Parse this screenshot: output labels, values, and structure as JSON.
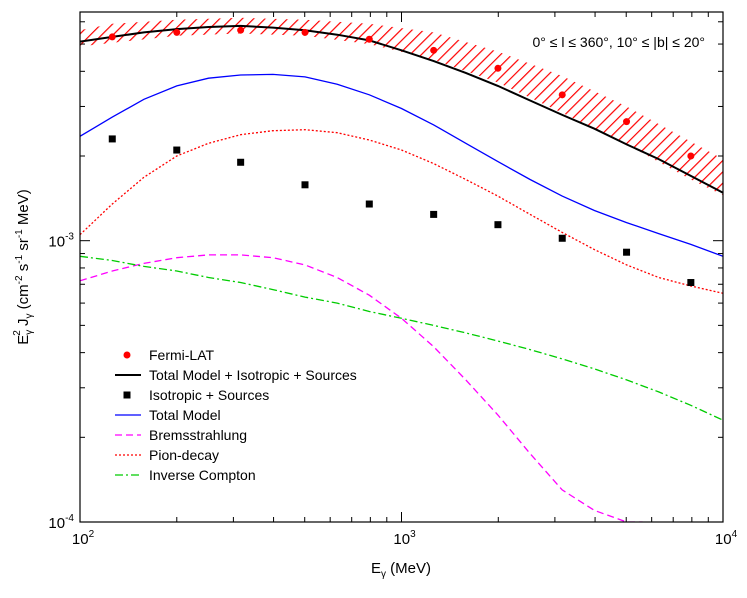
{
  "chart_data": {
    "type": "line",
    "title": "",
    "annotation": "0° ≤ l ≤ 360°, 10° ≤ |b| ≤ 20°",
    "xlabel": {
      "base": "E",
      "sub": "γ",
      "rest": " (MeV)"
    },
    "ylabel": {
      "base": "E",
      "sub": "γ",
      "sup": "2",
      "mid": " J",
      "sub2": "γ",
      "pre_units": " (cm",
      "exp1": "-2",
      "s_txt": " s",
      "exp2": "-1",
      "sr_txt": " sr",
      "exp3": "-1",
      "tail": " MeV)"
    },
    "xscale": "log",
    "yscale": "log",
    "xlim": [
      100,
      10000
    ],
    "ylim": [
      0.0001,
      0.0065
    ],
    "xticks": [
      {
        "value": 100,
        "base": "10",
        "exp": "2"
      },
      {
        "value": 1000,
        "base": "10",
        "exp": "3"
      },
      {
        "value": 10000,
        "base": "10",
        "exp": "4"
      }
    ],
    "yticks": [
      {
        "value": 0.0001,
        "base": "10",
        "exp": "-4"
      },
      {
        "value": 0.001,
        "base": "10",
        "exp": "-3"
      }
    ],
    "legend_position": "bottom-left",
    "legend": [
      {
        "label": "Fermi-LAT",
        "kind": "marker-circle",
        "color": "#ff0000"
      },
      {
        "label": "Total Model + Isotropic + Sources",
        "kind": "line-solid",
        "color": "#000000"
      },
      {
        "label": "Isotropic + Sources",
        "kind": "marker-square",
        "color": "#000000"
      },
      {
        "label": "Total Model",
        "kind": "line-solid",
        "color": "#0000ff"
      },
      {
        "label": "Bremsstrahlung",
        "kind": "line-dashed",
        "color": "#ff00ff"
      },
      {
        "label": "Pion-decay",
        "kind": "line-dotted",
        "color": "#ff0000"
      },
      {
        "label": "Inverse Compton",
        "kind": "line-dashdot",
        "color": "#00cc00"
      }
    ],
    "fermi_lat": {
      "name": "Fermi-LAT",
      "color": "#ff0000",
      "x": [
        126,
        200,
        316,
        501,
        794,
        1259,
        1995,
        3162,
        5012,
        7943
      ],
      "y": [
        0.0053,
        0.0055,
        0.0056,
        0.0055,
        0.0052,
        0.00475,
        0.0041,
        0.0033,
        0.00265,
        0.002
      ]
    },
    "systematic_band": {
      "name": "Fermi-LAT systematic band",
      "color": "#ff0000",
      "x": [
        100,
        126,
        200,
        316,
        501,
        794,
        1259,
        1995,
        3162,
        5012,
        7943,
        10000
      ],
      "lower": [
        0.0049,
        0.00505,
        0.00535,
        0.00545,
        0.00535,
        0.005,
        0.0044,
        0.00365,
        0.00285,
        0.0022,
        0.00165,
        0.00145
      ],
      "upper": [
        0.0056,
        0.0059,
        0.0061,
        0.0062,
        0.0061,
        0.0059,
        0.0055,
        0.0047,
        0.00385,
        0.003,
        0.00225,
        0.00195
      ]
    },
    "isotropic_sources": {
      "name": "Isotropic + Sources",
      "color": "#000000",
      "x": [
        126,
        200,
        316,
        501,
        794,
        1259,
        1995,
        3162,
        5012,
        7943
      ],
      "y": [
        0.0023,
        0.0021,
        0.0019,
        0.00158,
        0.00135,
        0.00124,
        0.00114,
        0.00102,
        0.00091,
        0.00071
      ]
    },
    "series": [
      {
        "name": "Total Model + Isotropic + Sources",
        "color": "#000000",
        "style": "solid",
        "x": [
          100,
          126,
          158,
          200,
          251,
          316,
          398,
          501,
          631,
          794,
          1000,
          1259,
          1585,
          1995,
          2512,
          3162,
          3981,
          5012,
          6310,
          7943,
          10000
        ],
        "y": [
          0.0051,
          0.0053,
          0.0055,
          0.00565,
          0.00575,
          0.0058,
          0.00572,
          0.0056,
          0.0054,
          0.00515,
          0.00475,
          0.00435,
          0.00395,
          0.00355,
          0.00315,
          0.0028,
          0.0025,
          0.0022,
          0.00195,
          0.0017,
          0.00148
        ]
      },
      {
        "name": "Total Model",
        "color": "#0000ff",
        "style": "solid",
        "x": [
          100,
          126,
          158,
          200,
          251,
          316,
          398,
          501,
          631,
          794,
          1000,
          1259,
          1585,
          1995,
          2512,
          3162,
          3981,
          5012,
          6310,
          7943,
          10000
        ],
        "y": [
          0.00235,
          0.00275,
          0.00318,
          0.00355,
          0.00378,
          0.00388,
          0.0039,
          0.00382,
          0.0036,
          0.0033,
          0.00295,
          0.00258,
          0.00222,
          0.00191,
          0.00165,
          0.00144,
          0.00128,
          0.00116,
          0.00106,
          0.00097,
          0.00088
        ]
      },
      {
        "name": "Bremsstrahlung",
        "color": "#ff00ff",
        "style": "dashed",
        "x": [
          100,
          126,
          158,
          200,
          251,
          316,
          398,
          501,
          631,
          794,
          1000,
          1259,
          1585,
          1995,
          2512,
          3162,
          3981,
          5012,
          5623
        ],
        "y": [
          0.00072,
          0.00078,
          0.00083,
          0.00087,
          0.00089,
          0.00089,
          0.00087,
          0.00082,
          0.00074,
          0.00064,
          0.00053,
          0.00042,
          0.00032,
          0.00024,
          0.000175,
          0.00013,
          0.00011,
          0.0001,
          0.0001
        ]
      },
      {
        "name": "Pion-decay",
        "color": "#ff0000",
        "style": "dotted",
        "x": [
          100,
          126,
          158,
          200,
          251,
          316,
          398,
          501,
          631,
          794,
          1000,
          1259,
          1585,
          1995,
          2512,
          3162,
          3981,
          5012,
          6310,
          7943,
          10000
        ],
        "y": [
          0.00105,
          0.00135,
          0.00168,
          0.002,
          0.00222,
          0.00238,
          0.00246,
          0.00248,
          0.00242,
          0.00228,
          0.0021,
          0.00188,
          0.00165,
          0.00144,
          0.00124,
          0.00107,
          0.00093,
          0.00082,
          0.00074,
          0.00069,
          0.00065
        ]
      },
      {
        "name": "Inverse Compton",
        "color": "#00cc00",
        "style": "dashdot",
        "x": [
          100,
          126,
          158,
          200,
          251,
          316,
          398,
          501,
          631,
          794,
          1000,
          1259,
          1585,
          1995,
          2512,
          3162,
          3981,
          5012,
          6310,
          7943,
          10000
        ],
        "y": [
          0.00088,
          0.00085,
          0.00081,
          0.00078,
          0.00074,
          0.00071,
          0.00067,
          0.00063,
          0.0006,
          0.00056,
          0.00053,
          0.0005,
          0.00047,
          0.00044,
          0.00041,
          0.00038,
          0.00035,
          0.00032,
          0.00029,
          0.00026,
          0.00023
        ]
      }
    ]
  }
}
